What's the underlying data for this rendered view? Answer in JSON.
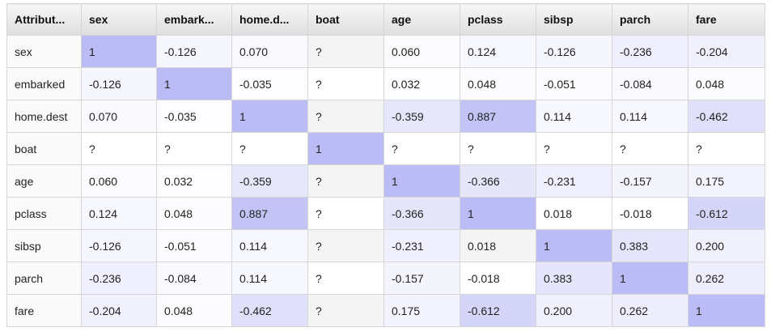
{
  "table": {
    "columns": [
      "Attribut...",
      "sex",
      "embark...",
      "home.d...",
      "boat",
      "age",
      "pclass",
      "sibsp",
      "parch",
      "fare"
    ],
    "rows": [
      {
        "attribute": "sex",
        "values": [
          "1",
          "-0.126",
          "0.070",
          "?",
          "0.060",
          "0.124",
          "-0.126",
          "-0.236",
          "-0.204"
        ]
      },
      {
        "attribute": "embarked",
        "values": [
          "-0.126",
          "1",
          "-0.035",
          "?",
          "0.032",
          "0.048",
          "-0.051",
          "-0.084",
          "0.048"
        ]
      },
      {
        "attribute": "home.dest",
        "values": [
          "0.070",
          "-0.035",
          "1",
          "?",
          "-0.359",
          "0.887",
          "0.114",
          "0.114",
          "-0.462"
        ]
      },
      {
        "attribute": "boat",
        "values": [
          "?",
          "?",
          "?",
          "1",
          "?",
          "?",
          "?",
          "?",
          "?"
        ]
      },
      {
        "attribute": "age",
        "values": [
          "0.060",
          "0.032",
          "-0.359",
          "?",
          "1",
          "-0.366",
          "-0.231",
          "-0.157",
          "0.175"
        ]
      },
      {
        "attribute": "pclass",
        "values": [
          "0.124",
          "0.048",
          "0.887",
          "?",
          "-0.366",
          "1",
          "0.018",
          "-0.018",
          "-0.612"
        ]
      },
      {
        "attribute": "sibsp",
        "values": [
          "-0.126",
          "-0.051",
          "0.114",
          "?",
          "-0.231",
          "0.018",
          "1",
          "0.383",
          "0.200"
        ]
      },
      {
        "attribute": "parch",
        "values": [
          "-0.236",
          "-0.084",
          "0.114",
          "?",
          "-0.157",
          "-0.018",
          "0.383",
          "1",
          "0.262"
        ]
      },
      {
        "attribute": "fare",
        "values": [
          "-0.204",
          "0.048",
          "-0.462",
          "?",
          "0.175",
          "-0.612",
          "0.200",
          "0.262",
          "1"
        ]
      }
    ]
  },
  "colors": {
    "header_gradient_top": "#f7f7f7",
    "header_gradient_bottom": "#dedede",
    "heat_max": "#bbbbf5",
    "border": "#d6d6d6"
  }
}
